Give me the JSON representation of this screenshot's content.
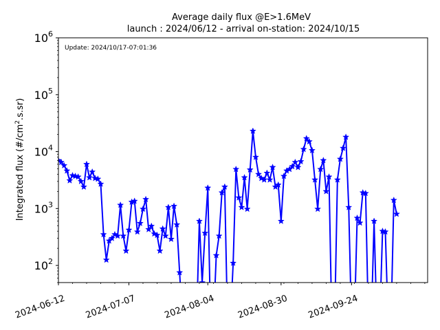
{
  "chart_data": {
    "type": "line",
    "title": "Average daily flux @E>1.6MeV",
    "subtitle": "launch : 2024/06/12 - arrival on-station: 2024/10/15",
    "ylabel": "Integrated flux (#/cm",
    "ylabel_sup": "2",
    "ylabel_tail": ".s.sr)",
    "annotation": "Update: 2024/10/17-07:01:36",
    "yscale": "log",
    "ylim": [
      50,
      1000000
    ],
    "xlim": [
      "2024-06-12",
      "2024-10-21"
    ],
    "grid": false,
    "legend": "none",
    "series_color": "#0000ff",
    "marker": "star",
    "x_ticks": [
      "2024-06-12",
      "2024-07-07",
      "2024-08-04",
      "2024-08-30",
      "2024-09-24"
    ],
    "y_ticks": [
      {
        "value": 100,
        "base": "10",
        "exp": "2"
      },
      {
        "value": 1000,
        "base": "10",
        "exp": "3"
      },
      {
        "value": 10000,
        "base": "10",
        "exp": "4"
      },
      {
        "value": 100000,
        "base": "10",
        "exp": "5"
      },
      {
        "value": 1000000,
        "base": "10",
        "exp": "6"
      }
    ],
    "series": [
      {
        "points": [
          [
            "2024-06-12",
            7000
          ],
          [
            "2024-06-13",
            6500
          ],
          [
            "2024-06-14",
            5700
          ],
          [
            "2024-06-15",
            4600
          ],
          [
            "2024-06-16",
            3100
          ],
          [
            "2024-06-17",
            3800
          ],
          [
            "2024-06-18",
            3700
          ],
          [
            "2024-06-19",
            3600
          ],
          [
            "2024-06-20",
            3000
          ],
          [
            "2024-06-21",
            2400
          ],
          [
            "2024-06-22",
            6000
          ],
          [
            "2024-06-23",
            3500
          ],
          [
            "2024-06-24",
            4400
          ],
          [
            "2024-06-25",
            3400
          ],
          [
            "2024-06-26",
            3300
          ],
          [
            "2024-06-27",
            2700
          ],
          [
            "2024-06-28",
            350
          ],
          [
            "2024-06-29",
            125
          ],
          [
            "2024-06-30",
            270
          ],
          [
            "2024-07-01",
            300
          ],
          [
            "2024-07-02",
            350
          ],
          [
            "2024-07-03",
            330
          ],
          [
            "2024-07-04",
            1150
          ],
          [
            "2024-07-05",
            330
          ],
          [
            "2024-07-06",
            180
          ],
          [
            "2024-07-07",
            420
          ],
          [
            "2024-07-08",
            1300
          ],
          [
            "2024-07-09",
            1350
          ],
          [
            "2024-07-10",
            390
          ],
          [
            "2024-07-11",
            550
          ],
          [
            "2024-07-12",
            980
          ],
          [
            "2024-07-13",
            1450
          ],
          [
            "2024-07-14",
            430
          ],
          [
            "2024-07-15",
            490
          ],
          [
            "2024-07-16",
            360
          ],
          [
            "2024-07-17",
            340
          ],
          [
            "2024-07-18",
            180
          ],
          [
            "2024-07-19",
            440
          ],
          [
            "2024-07-20",
            330
          ],
          [
            "2024-07-21",
            1050
          ],
          [
            "2024-07-22",
            290
          ],
          [
            "2024-07-23",
            1100
          ],
          [
            "2024-07-24",
            520
          ],
          [
            "2024-07-25",
            75
          ],
          [
            "2024-07-26",
            0
          ],
          [
            "2024-07-31",
            0
          ],
          [
            "2024-08-01",
            600
          ],
          [
            "2024-08-02",
            50
          ],
          [
            "2024-08-03",
            370
          ],
          [
            "2024-08-04",
            2300
          ],
          [
            "2024-08-05",
            0
          ],
          [
            "2024-08-06",
            0
          ],
          [
            "2024-08-07",
            150
          ],
          [
            "2024-08-08",
            330
          ],
          [
            "2024-08-09",
            1900
          ],
          [
            "2024-08-10",
            2400
          ],
          [
            "2024-08-11",
            0
          ],
          [
            "2024-08-12",
            0
          ],
          [
            "2024-08-13",
            110
          ],
          [
            "2024-08-14",
            4900
          ],
          [
            "2024-08-15",
            1550
          ],
          [
            "2024-08-16",
            1050
          ],
          [
            "2024-08-17",
            3500
          ],
          [
            "2024-08-18",
            980
          ],
          [
            "2024-08-19",
            4800
          ],
          [
            "2024-08-20",
            23000
          ],
          [
            "2024-08-21",
            8000
          ],
          [
            "2024-08-22",
            4000
          ],
          [
            "2024-08-23",
            3400
          ],
          [
            "2024-08-24",
            3200
          ],
          [
            "2024-08-25",
            4200
          ],
          [
            "2024-08-26",
            3200
          ],
          [
            "2024-08-27",
            5300
          ],
          [
            "2024-08-28",
            2400
          ],
          [
            "2024-08-29",
            2600
          ],
          [
            "2024-08-30",
            600
          ],
          [
            "2024-08-31",
            3700
          ],
          [
            "2024-09-01",
            4600
          ],
          [
            "2024-09-02",
            4900
          ],
          [
            "2024-09-03",
            5500
          ],
          [
            "2024-09-04",
            6500
          ],
          [
            "2024-09-05",
            5300
          ],
          [
            "2024-09-06",
            6700
          ],
          [
            "2024-09-07",
            11000
          ],
          [
            "2024-09-08",
            17000
          ],
          [
            "2024-09-09",
            15000
          ],
          [
            "2024-09-10",
            10500
          ],
          [
            "2024-09-11",
            3200
          ],
          [
            "2024-09-12",
            980
          ],
          [
            "2024-09-13",
            4900
          ],
          [
            "2024-09-14",
            7000
          ],
          [
            "2024-09-15",
            2000
          ],
          [
            "2024-09-16",
            3600
          ],
          [
            "2024-09-17",
            0
          ],
          [
            "2024-09-18",
            0
          ],
          [
            "2024-09-19",
            3200
          ],
          [
            "2024-09-20",
            7400
          ],
          [
            "2024-09-21",
            11500
          ],
          [
            "2024-09-22",
            18000
          ],
          [
            "2024-09-23",
            1050
          ],
          [
            "2024-09-24",
            0
          ],
          [
            "2024-09-25",
            0
          ],
          [
            "2024-09-26",
            680
          ],
          [
            "2024-09-27",
            560
          ],
          [
            "2024-09-28",
            1900
          ],
          [
            "2024-09-29",
            1850
          ],
          [
            "2024-09-30",
            0
          ],
          [
            "2024-10-01",
            0
          ],
          [
            "2024-10-02",
            600
          ],
          [
            "2024-10-03",
            0
          ],
          [
            "2024-10-04",
            0
          ],
          [
            "2024-10-05",
            400
          ],
          [
            "2024-10-06",
            390
          ],
          [
            "2024-10-07",
            0
          ],
          [
            "2024-10-08",
            0
          ],
          [
            "2024-10-09",
            1400
          ],
          [
            "2024-10-10",
            800
          ]
        ]
      }
    ]
  }
}
